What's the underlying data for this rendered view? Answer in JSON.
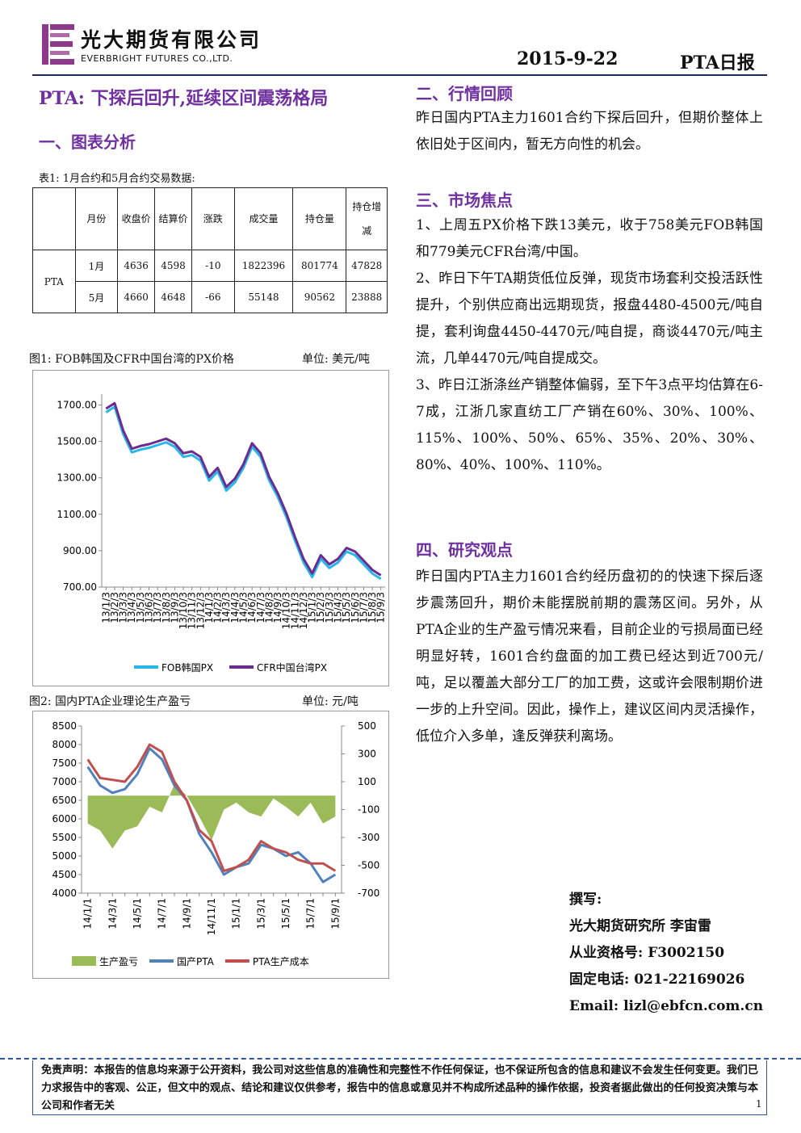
{
  "header": {
    "company_cn": "光大期货有限公司",
    "company_en": "EVERBRIGHT FUTURES CO.,LTD.",
    "date": "2015-9-22",
    "report": "PTA日报"
  },
  "headline": "PTA: 下探后回升,延续区间震荡格局",
  "left_section": "一、图表分析",
  "table": {
    "caption": "表1: 1月合约和5月合约交易数据:",
    "headers": [
      "月份",
      "收盘价",
      "结算价",
      "涨跌",
      "成交量",
      "持仓量",
      "持仓增减"
    ],
    "product": "PTA",
    "rows": [
      [
        "1月",
        4636,
        4598,
        -10,
        1822396,
        801774,
        47828
      ],
      [
        "5月",
        4660,
        4648,
        -66,
        55148,
        90562,
        23888
      ]
    ]
  },
  "chart_data": [
    {
      "type": "line",
      "title": "图1: FOB韩国及CFR中国台湾的PX价格",
      "unit": "单位: 美元/吨",
      "categories": [
        "13/1/3",
        "13/2/3",
        "13/3/3",
        "13/4/3",
        "13/5/3",
        "13/6/3",
        "13/7/3",
        "13/8/3",
        "13/9/3",
        "13/10/3",
        "13/11/3",
        "13/12/3",
        "14/1/3",
        "14/2/3",
        "14/3/3",
        "14/4/3",
        "14/5/3",
        "14/6/3",
        "14/7/3",
        "14/8/3",
        "14/9/3",
        "14/10/3",
        "14/11/3",
        "14/12/3",
        "15/1/3",
        "15/2/3",
        "15/3/3",
        "15/4/3",
        "15/5/3",
        "15/6/3",
        "15/7/3",
        "15/8/3",
        "15/9/3"
      ],
      "series": [
        {
          "name": "FOB韩国PX",
          "color": "#29b6e8",
          "values": [
            1660,
            1690,
            1540,
            1440,
            1455,
            1465,
            1480,
            1495,
            1470,
            1415,
            1425,
            1395,
            1285,
            1335,
            1230,
            1275,
            1355,
            1470,
            1415,
            1285,
            1195,
            1085,
            955,
            835,
            755,
            855,
            805,
            835,
            895,
            875,
            825,
            775,
            745
          ]
        },
        {
          "name": "CFR中国台湾PX",
          "color": "#6a2c91",
          "values": [
            1680,
            1710,
            1560,
            1460,
            1475,
            1485,
            1500,
            1515,
            1490,
            1435,
            1445,
            1415,
            1305,
            1355,
            1250,
            1295,
            1375,
            1490,
            1435,
            1305,
            1215,
            1105,
            975,
            855,
            775,
            875,
            825,
            855,
            915,
            895,
            845,
            795,
            765
          ]
        }
      ],
      "ylim": [
        700,
        1760
      ],
      "yticks": [
        {
          "value": 700,
          "label": "700.00"
        },
        {
          "value": 900,
          "label": "900.00"
        },
        {
          "value": 1100,
          "label": "1100.00"
        },
        {
          "value": 1300,
          "label": "1300.00"
        },
        {
          "value": 1500,
          "label": "1500.00"
        },
        {
          "value": 1700,
          "label": "1700.00"
        }
      ]
    },
    {
      "type": "combo",
      "title": "图2: 国内PTA企业理论生产盈亏",
      "unit": "单位: 元/吨",
      "categories": [
        "14/1/1",
        null,
        "14/3/1",
        null,
        "14/5/1",
        null,
        "14/7/1",
        null,
        "14/9/1",
        null,
        "14/11/1",
        null,
        "15/1/1",
        null,
        "15/3/1",
        null,
        "15/5/1",
        null,
        "15/7/1",
        null,
        "15/9/1"
      ],
      "series": [
        {
          "name": "生产盈亏",
          "color": "#9bbb59",
          "mark": "area",
          "axis": "y2",
          "values": [
            -200,
            -250,
            -380,
            -250,
            -220,
            -80,
            -120,
            80,
            0,
            -150,
            -320,
            -100,
            -50,
            -120,
            -150,
            -20,
            -80,
            -150,
            -50,
            -200,
            -150
          ]
        },
        {
          "name": "国产PTA",
          "color": "#4f81bd",
          "mark": "line",
          "values": [
            7400,
            6900,
            6700,
            6800,
            7200,
            7900,
            7600,
            6900,
            6500,
            5600,
            5100,
            4500,
            4700,
            4800,
            5300,
            5200,
            5000,
            5100,
            4800,
            4300,
            4500
          ]
        },
        {
          "name": "PTA生产成本",
          "color": "#c0504d",
          "mark": "line",
          "values": [
            7600,
            7100,
            7050,
            7000,
            7400,
            8000,
            7800,
            7000,
            6500,
            5700,
            5400,
            4600,
            4700,
            4900,
            5400,
            5200,
            5100,
            4900,
            4800,
            4800,
            4600
          ]
        }
      ],
      "ylim": [
        4000,
        8500
      ],
      "yticks": [
        4000,
        4500,
        5000,
        5500,
        6000,
        6500,
        7000,
        7500,
        8000,
        8500
      ],
      "y2lim": [
        -700,
        500
      ],
      "y2ticks": [
        -700,
        -500,
        -300,
        -100,
        100,
        300,
        500
      ]
    }
  ],
  "right": [
    {
      "heading": "二、行情回顾",
      "paragraphs": [
        "昨日国内PTA主力1601合约下探后回升，但期价整体上依旧处于区间内，暂无方向性的机会。"
      ]
    },
    {
      "heading": "三、市场焦点",
      "paragraphs": [
        "1、上周五PX价格下跌13美元，收于758美元FOB韩国和779美元CFR台湾/中国。",
        "2、昨日下午TA期货低位反弹，现货市场套利交投活跃性提升，个别供应商出远期现货，报盘4480-4500元/吨自提，套利询盘4450-4470元/吨自提，商谈4470元/吨主流，几单4470元/吨自提成交。",
        "3、昨日江浙涤丝产销整体偏弱，至下午3点平均估算在6-7成，江浙几家直纺工厂产销在60%、30%、100%、115%、100%、50%、65%、35%、20%、30%、80%、40%、100%、110%。"
      ]
    },
    {
      "heading": "四、研究观点",
      "paragraphs": [
        "昨日国内PTA主力1601合约经历盘初的的快速下探后逐步震荡回升，期价未能摆脱前期的震荡区间。另外，从PTA企业的生产盈亏情况来看，目前企业的亏损局面已经明显好转，1601合约盘面的加工费已经达到近700元/吨，足以覆盖大部分工厂的加工费，这或许会限制期价进一步的上升空间。因此，操作上，建议区间内灵活操作，低位介入多单，逢反弹获利离场。"
      ]
    }
  ],
  "author": [
    "撰写:",
    "光大期货研究所 李宙雷",
    "从业资格号: F3002150",
    "固定电话: 021-22169026",
    "Email: lizl@ebfcn.com.cn"
  ],
  "disclaimer": "免责声明：本报告的信息均来源于公开资料，我公司对这些信息的准确性和完整性不作任何保证，也不保证所包含的信息和建议不会发生任何变更。我们已力求报告中的客观、公正，但文中的观点、结论和建议仅供参考，报告中的信息或意见并不构成所述品种的操作依据，投资者据此做出的任何投资决策与本公司和作者无关",
  "page_number": "1"
}
